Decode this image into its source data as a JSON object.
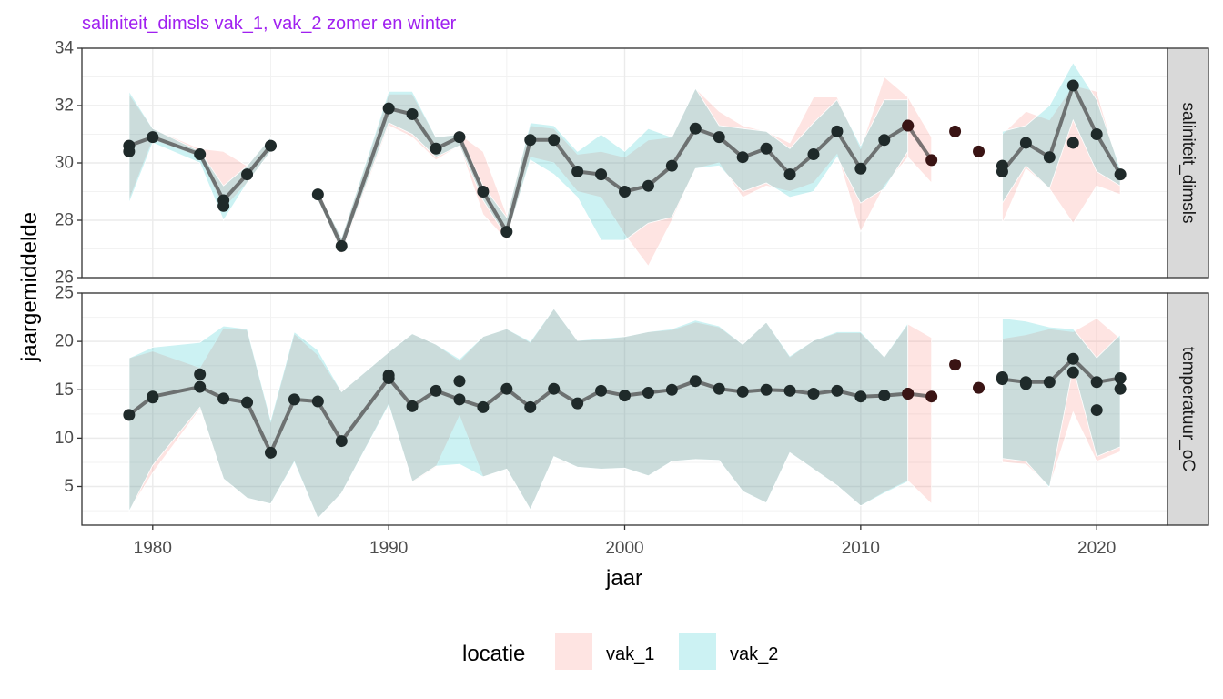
{
  "chart_data": {
    "type": "line",
    "title": "saliniteit_dimsls vak_1, vak_2 zomer en winter",
    "xlabel": "jaar",
    "ylabel": "jaargemiddelde",
    "x_ticks": [
      1980,
      1990,
      2000,
      2010,
      2020
    ],
    "xlim": [
      1977,
      2023
    ],
    "legend": {
      "title": "locatie",
      "position": "bottom",
      "entries": [
        {
          "name": "vak_1",
          "color": "#F8766D"
        },
        {
          "name": "vak_2",
          "color": "#00BFC4"
        }
      ]
    },
    "colors": {
      "title": "#A020F0",
      "vak_1_fill": "#F8766D",
      "vak_2_fill": "#00BFC4",
      "line": "#4D4D4D",
      "point": "#1F2A2A",
      "point_vak_1_only": "#3A1414",
      "strip": "#D9D9D9"
    },
    "panels": [
      {
        "strip_label": "saliniteit_dimsls",
        "ylim": [
          26,
          34
        ],
        "y_ticks": [
          26,
          28,
          30,
          32,
          34
        ],
        "segments": [
          {
            "years": [
              1979,
              1980,
              1982,
              1983,
              1984,
              1985
            ],
            "mean": [
              30.6,
              30.9,
              30.3,
              28.7,
              29.6,
              30.6
            ],
            "vak_1": {
              "min": [
                28.7,
                30.8,
                30.2,
                28.4,
                29.3,
                30.4
              ],
              "max": [
                32.4,
                31.2,
                30.5,
                30.4,
                29.9,
                30.9
              ]
            },
            "vak_2": {
              "min": [
                28.6,
                30.7,
                30.0,
                28.0,
                29.3,
                30.4
              ],
              "max": [
                32.5,
                31.2,
                30.4,
                29.2,
                29.9,
                30.9
              ]
            }
          },
          {
            "years": [
              1987,
              1988,
              1990,
              1991,
              1992,
              1993,
              1994,
              1995,
              1996,
              1997,
              1998,
              1999,
              2000,
              2001,
              2002,
              2003,
              2004,
              2005,
              2006,
              2007,
              2008,
              2009,
              2010,
              2011,
              2012
            ],
            "mean": [
              28.9,
              27.1,
              31.9,
              31.7,
              30.5,
              30.9,
              29.0,
              27.6,
              30.8,
              30.8,
              29.7,
              29.6,
              29.0,
              29.2,
              29.9,
              31.2,
              30.9,
              30.2,
              30.5,
              29.6,
              30.3,
              31.1,
              29.8,
              30.8,
              31.3
            ],
            "vak_1": {
              "min": [
                28.7,
                26.8,
                31.3,
                30.9,
                30.1,
                30.6,
                28.2,
                27.3,
                30.2,
                30.0,
                29.0,
                28.8,
                27.5,
                26.4,
                28.0,
                29.8,
                30.0,
                28.8,
                29.2,
                29.0,
                29.3,
                30.3,
                27.6,
                29.2,
                30.2
              ],
              "max": [
                29.0,
                27.4,
                32.4,
                32.4,
                30.9,
                31.0,
                30.4,
                28.2,
                31.3,
                31.2,
                30.3,
                30.4,
                30.2,
                30.8,
                30.9,
                32.6,
                31.8,
                31.3,
                31.1,
                30.7,
                32.3,
                32.3,
                30.5,
                33.0,
                32.3
              ]
            },
            "vak_2": {
              "min": [
                28.7,
                26.9,
                31.4,
                31.0,
                30.2,
                30.6,
                28.7,
                27.4,
                30.1,
                29.6,
                28.8,
                27.3,
                27.3,
                27.9,
                28.1,
                29.8,
                29.9,
                29.0,
                29.3,
                28.8,
                29.0,
                30.2,
                28.6,
                29.1,
                30.4
              ],
              "max": [
                29.0,
                27.4,
                32.5,
                32.5,
                30.9,
                31.0,
                29.2,
                28.1,
                31.4,
                31.3,
                30.4,
                31.0,
                30.4,
                31.2,
                30.9,
                32.6,
                31.3,
                31.2,
                31.1,
                30.5,
                31.4,
                32.2,
                30.6,
                32.2,
                32.2
              ]
            }
          },
          {
            "years": [
              2012,
              2013
            ],
            "mean": [
              31.3,
              30.1
            ],
            "vak_1": {
              "min": [
                30.2,
                29.3
              ],
              "max": [
                32.3,
                30.9
              ]
            }
          },
          {
            "years": [
              2014
            ],
            "mean": [
              31.1
            ]
          },
          {
            "years": [
              2015
            ],
            "mean": [
              30.4
            ]
          },
          {
            "years": [
              2016,
              2017,
              2018,
              2019,
              2020,
              2021
            ],
            "mean": [
              29.7,
              30.7,
              30.2,
              32.7,
              31.0,
              29.6
            ],
            "vak_1": {
              "min": [
                27.9,
                29.8,
                29.1,
                27.9,
                29.2,
                28.9
              ],
              "max": [
                31.0,
                31.8,
                31.5,
                32.7,
                32.5,
                29.7
              ]
            },
            "vak_2": {
              "min": [
                28.6,
                29.9,
                29.1,
                31.5,
                29.7,
                29.2
              ],
              "max": [
                31.1,
                31.3,
                32.0,
                33.5,
                32.2,
                29.8
              ]
            }
          }
        ],
        "extra_points": [
          {
            "year": 1979,
            "value": 30.4
          },
          {
            "year": 1983,
            "value": 28.5
          },
          {
            "year": 2016,
            "value": 29.9
          },
          {
            "year": 2019,
            "value": 30.7
          }
        ]
      },
      {
        "strip_label": "temperatuur_oC",
        "ylim": [
          1,
          25
        ],
        "y_ticks": [
          5,
          10,
          15,
          20,
          25
        ],
        "segments": [
          {
            "years": [
              1979,
              1980,
              1982,
              1983,
              1984,
              1985,
              1986,
              1987,
              1988,
              1990,
              1991,
              1992,
              1993,
              1994,
              1995,
              1996,
              1997,
              1998,
              1999,
              2000,
              2001,
              2002,
              2003,
              2004,
              2005,
              2006,
              2007,
              2008,
              2009,
              2010,
              2011,
              2012
            ],
            "mean": [
              12.4,
              14.3,
              15.3,
              14.1,
              13.7,
              8.5,
              14.0,
              13.8,
              9.7,
              16.2,
              13.3,
              14.9,
              14.0,
              13.2,
              15.1,
              13.2,
              15.1,
              13.6,
              14.9,
              14.4,
              14.7,
              15.0,
              15.9,
              15.1,
              14.8,
              15.0,
              14.9,
              14.6,
              14.9,
              14.3,
              14.4,
              14.6
            ],
            "vak_1": {
              "min": [
                2.5,
                6.4,
                13.0,
                5.8,
                3.8,
                3.2,
                7.6,
                1.7,
                4.3,
                13.5,
                5.4,
                7.0,
                12.3,
                6.0,
                6.8,
                2.6,
                8.1,
                7.0,
                6.8,
                6.9,
                6.1,
                7.6,
                7.8,
                7.7,
                4.5,
                3.3,
                8.5,
                6.8,
                5.1,
                3.0,
                4.4,
                5.6
              ],
              "max": [
                18.3,
                19.0,
                17.3,
                21.4,
                21.2,
                11.7,
                20.8,
                18.6,
                14.8,
                18.9,
                20.8,
                19.7,
                18.0,
                20.5,
                21.3,
                19.9,
                23.4,
                20.1,
                20.2,
                20.5,
                21.0,
                21.2,
                22.0,
                21.5,
                19.7,
                22.0,
                18.4,
                20.1,
                20.9,
                20.9,
                18.4,
                21.8
              ]
            },
            "vak_2": {
              "min": [
                2.4,
                7.2,
                13.2,
                5.8,
                3.8,
                3.2,
                7.5,
                1.7,
                4.3,
                13.4,
                5.5,
                7.1,
                7.3,
                6.0,
                6.8,
                2.6,
                8.1,
                7.0,
                6.8,
                6.9,
                6.1,
                7.6,
                7.8,
                7.7,
                4.5,
                3.3,
                8.5,
                6.8,
                5.1,
                3.0,
                4.3,
                5.5
              ],
              "max": [
                18.3,
                19.4,
                19.9,
                21.6,
                21.3,
                11.9,
                21.0,
                19.1,
                14.8,
                18.9,
                20.8,
                19.7,
                18.2,
                20.5,
                21.3,
                20.0,
                23.4,
                20.1,
                20.3,
                20.5,
                21.0,
                21.3,
                22.2,
                21.6,
                19.7,
                22.0,
                18.5,
                20.1,
                21.0,
                21.0,
                18.4,
                21.9
              ]
            }
          },
          {
            "years": [
              2012,
              2013
            ],
            "mean": [
              14.6,
              14.3
            ],
            "vak_1": {
              "min": [
                5.6,
                3.2
              ],
              "max": [
                21.8,
                20.4
              ]
            }
          },
          {
            "years": [
              2014
            ],
            "mean": [
              17.6
            ]
          },
          {
            "years": [
              2015
            ],
            "mean": [
              15.2
            ]
          },
          {
            "years": [
              2016,
              2017,
              2018,
              2019,
              2020,
              2021
            ],
            "mean": [
              16.1,
              15.8,
              15.8,
              18.2,
              15.8,
              16.2
            ],
            "vak_1": {
              "min": [
                7.5,
                7.3,
                5.0,
                12.7,
                7.6,
                8.6
              ],
              "max": [
                20.3,
                20.7,
                21.3,
                21.0,
                22.4,
                20.3
              ]
            },
            "vak_2": {
              "min": [
                7.9,
                7.6,
                4.9,
                17.3,
                8.1,
                9.1
              ],
              "max": [
                22.4,
                22.1,
                21.5,
                21.3,
                18.3,
                20.7
              ]
            }
          }
        ],
        "extra_points": [
          {
            "year": 1980,
            "value": 14.2
          },
          {
            "year": 1982,
            "value": 16.6
          },
          {
            "year": 1990,
            "value": 16.5
          },
          {
            "year": 1993,
            "value": 15.9
          },
          {
            "year": 2016,
            "value": 16.3
          },
          {
            "year": 2017,
            "value": 15.6
          },
          {
            "year": 2019,
            "value": 16.8
          },
          {
            "year": 2020,
            "value": 12.9
          },
          {
            "year": 2021,
            "value": 15.1
          }
        ]
      }
    ]
  }
}
